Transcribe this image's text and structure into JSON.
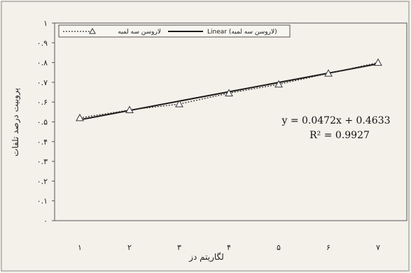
{
  "chart_data": {
    "type": "scatter",
    "x": [
      1,
      2,
      3,
      4,
      5,
      6,
      7
    ],
    "x_tick_labels": [
      "۱",
      "۲",
      "۳",
      "۴",
      "۵",
      "۶",
      "۷"
    ],
    "xlabel": "لگاریتم دز",
    "ylabel": "پروبیت درصد تلفات",
    "ylim": [
      0,
      1
    ],
    "y_ticks": [
      0,
      0.1,
      0.2,
      0.3,
      0.4,
      0.5,
      0.6,
      0.7,
      0.8,
      0.9,
      1
    ],
    "y_tick_labels": [
      "۰",
      "۰.۱",
      "۰.۲",
      "۰.۳",
      "۰.۴",
      "۰.۵",
      "۰.۶",
      "۰.۷",
      "۰.۸",
      "۰.۹",
      "۱"
    ],
    "series": [
      {
        "name": "لاروسن سه لمبه",
        "marker": "triangle-open",
        "line": "dotted",
        "values": [
          0.52,
          0.56,
          0.59,
          0.645,
          0.69,
          0.745,
          0.8
        ]
      }
    ],
    "trendline": {
      "name": "Linear (لاروسن سه لمبه)",
      "slope": 0.0472,
      "intercept": 0.4633
    },
    "equation": "y = 0.0472x + 0.4633",
    "r_squared": "R² = 0.9927",
    "legend_placement": "top-left",
    "grid": false,
    "colors": {
      "series": "#333333",
      "trendline": "#1a1a1a",
      "plot_border": "#555555"
    }
  }
}
